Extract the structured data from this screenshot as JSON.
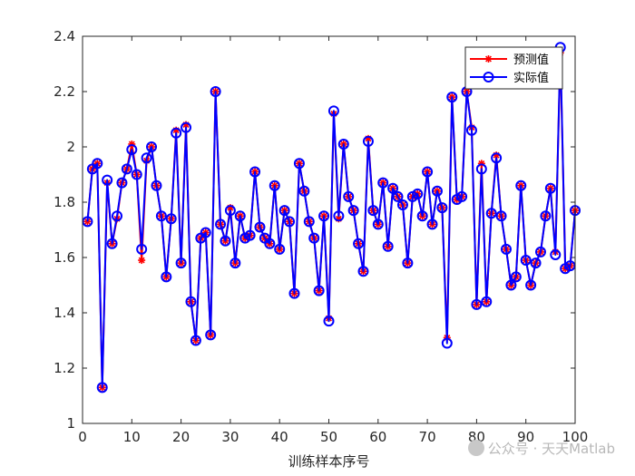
{
  "chart_data": {
    "type": "line",
    "title": "",
    "xlabel": "训练样本序号",
    "ylabel": "",
    "xlim": [
      0,
      100
    ],
    "ylim": [
      1,
      2.4
    ],
    "xticks": [
      0,
      10,
      20,
      30,
      40,
      50,
      60,
      70,
      80,
      90,
      100
    ],
    "yticks": [
      1,
      1.2,
      1.4,
      1.6,
      1.8,
      2,
      2.2,
      2.4
    ],
    "ytick_labels": [
      "1",
      "1.2",
      "1.4",
      "1.6",
      "1.8",
      "2",
      "2.2",
      "2.4"
    ],
    "legend_position": "top-right",
    "grid": false,
    "x": [
      1,
      2,
      3,
      4,
      5,
      6,
      7,
      8,
      9,
      10,
      11,
      12,
      13,
      14,
      15,
      16,
      17,
      18,
      19,
      20,
      21,
      22,
      23,
      24,
      25,
      26,
      27,
      28,
      29,
      30,
      31,
      32,
      33,
      34,
      35,
      36,
      37,
      38,
      39,
      40,
      41,
      42,
      43,
      44,
      45,
      46,
      47,
      48,
      49,
      50,
      51,
      52,
      53,
      54,
      55,
      56,
      57,
      58,
      59,
      60,
      61,
      62,
      63,
      64,
      65,
      66,
      67,
      68,
      69,
      70,
      71,
      72,
      73,
      74,
      75,
      76,
      77,
      78,
      79,
      80,
      81,
      82,
      83,
      84,
      85,
      86,
      87,
      88,
      89,
      90,
      91,
      92,
      93,
      94,
      95,
      96,
      97,
      98,
      99,
      100
    ],
    "series": [
      {
        "name": "预测值",
        "color": "#ff0000",
        "marker": "asterisk",
        "values": [
          1.73,
          1.92,
          1.94,
          1.13,
          1.87,
          1.65,
          1.74,
          1.87,
          1.92,
          2.01,
          1.9,
          1.59,
          1.95,
          2.0,
          1.86,
          1.75,
          1.53,
          1.74,
          2.06,
          1.58,
          2.08,
          1.44,
          1.3,
          1.67,
          1.69,
          1.32,
          2.2,
          1.72,
          1.66,
          1.78,
          1.58,
          1.75,
          1.67,
          1.68,
          1.91,
          1.71,
          1.67,
          1.65,
          1.86,
          1.63,
          1.77,
          1.73,
          1.47,
          1.94,
          1.84,
          1.73,
          1.67,
          1.48,
          1.75,
          1.38,
          2.12,
          1.74,
          2.01,
          1.82,
          1.77,
          1.65,
          1.55,
          2.03,
          1.77,
          1.72,
          1.87,
          1.64,
          1.85,
          1.82,
          1.79,
          1.58,
          1.82,
          1.83,
          1.75,
          1.91,
          1.72,
          1.84,
          1.78,
          1.31,
          2.18,
          1.81,
          1.82,
          2.2,
          2.07,
          1.43,
          1.94,
          1.44,
          1.76,
          1.97,
          1.75,
          1.63,
          1.5,
          1.53,
          1.86,
          1.59,
          1.5,
          1.58,
          1.62,
          1.75,
          1.85,
          1.62,
          2.34,
          1.56,
          1.57,
          1.77
        ]
      },
      {
        "name": "实际值",
        "color": "#0000ff",
        "marker": "circle",
        "values": [
          1.73,
          1.92,
          1.94,
          1.13,
          1.88,
          1.65,
          1.75,
          1.87,
          1.92,
          1.99,
          1.9,
          1.63,
          1.96,
          2.0,
          1.86,
          1.75,
          1.53,
          1.74,
          2.05,
          1.58,
          2.07,
          1.44,
          1.3,
          1.67,
          1.69,
          1.32,
          2.2,
          1.72,
          1.66,
          1.77,
          1.58,
          1.75,
          1.67,
          1.68,
          1.91,
          1.71,
          1.67,
          1.65,
          1.86,
          1.63,
          1.77,
          1.73,
          1.47,
          1.94,
          1.84,
          1.73,
          1.67,
          1.48,
          1.75,
          1.37,
          2.13,
          1.75,
          2.01,
          1.82,
          1.77,
          1.65,
          1.55,
          2.02,
          1.77,
          1.72,
          1.87,
          1.64,
          1.85,
          1.82,
          1.79,
          1.58,
          1.82,
          1.83,
          1.75,
          1.91,
          1.72,
          1.84,
          1.78,
          1.29,
          2.18,
          1.81,
          1.82,
          2.2,
          2.06,
          1.43,
          1.92,
          1.44,
          1.76,
          1.96,
          1.75,
          1.63,
          1.5,
          1.53,
          1.86,
          1.59,
          1.5,
          1.58,
          1.62,
          1.75,
          1.85,
          1.61,
          2.36,
          1.56,
          1.57,
          1.77
        ]
      }
    ]
  },
  "watermark": {
    "text": "公众号 · 天天Matlab"
  }
}
